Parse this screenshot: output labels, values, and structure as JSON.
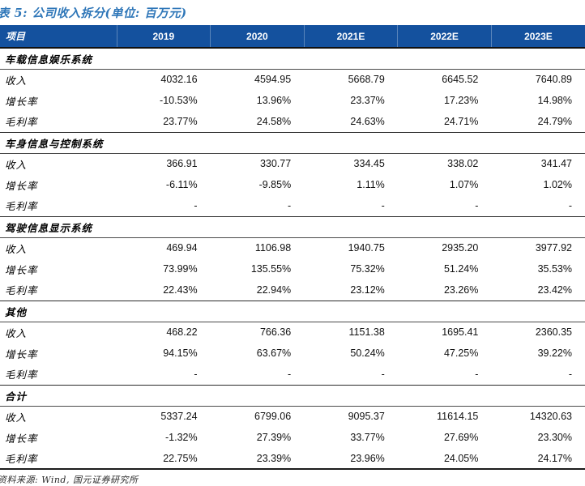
{
  "title": "表 5: 公司收入拆分(单位: 百万元)",
  "colors": {
    "header_bg": "#14519E",
    "title_blue": "#2E76B8",
    "rule_dark": "#1b1b1b"
  },
  "table": {
    "columns": [
      "项目",
      "2019",
      "2020",
      "2021E",
      "2022E",
      "2023E"
    ],
    "sections": [
      {
        "name": "车载信息娱乐系统",
        "rows": [
          {
            "label": "收入",
            "values": [
              "4032.16",
              "4594.95",
              "5668.79",
              "6645.52",
              "7640.89"
            ]
          },
          {
            "label": "增长率",
            "values": [
              "-10.53%",
              "13.96%",
              "23.37%",
              "17.23%",
              "14.98%"
            ]
          },
          {
            "label": "毛利率",
            "values": [
              "23.77%",
              "24.58%",
              "24.63%",
              "24.71%",
              "24.79%"
            ]
          }
        ]
      },
      {
        "name": "车身信息与控制系统",
        "rows": [
          {
            "label": "收入",
            "values": [
              "366.91",
              "330.77",
              "334.45",
              "338.02",
              "341.47"
            ]
          },
          {
            "label": "增长率",
            "values": [
              "-6.11%",
              "-9.85%",
              "1.11%",
              "1.07%",
              "1.02%"
            ]
          },
          {
            "label": "毛利率",
            "values": [
              "-",
              "-",
              "-",
              "-",
              "-"
            ]
          }
        ]
      },
      {
        "name": "驾驶信息显示系统",
        "rows": [
          {
            "label": "收入",
            "values": [
              "469.94",
              "1106.98",
              "1940.75",
              "2935.20",
              "3977.92"
            ]
          },
          {
            "label": "增长率",
            "values": [
              "73.99%",
              "135.55%",
              "75.32%",
              "51.24%",
              "35.53%"
            ]
          },
          {
            "label": "毛利率",
            "values": [
              "22.43%",
              "22.94%",
              "23.12%",
              "23.26%",
              "23.42%"
            ]
          }
        ]
      },
      {
        "name": "其他",
        "rows": [
          {
            "label": "收入",
            "values": [
              "468.22",
              "766.36",
              "1151.38",
              "1695.41",
              "2360.35"
            ]
          },
          {
            "label": "增长率",
            "values": [
              "94.15%",
              "63.67%",
              "50.24%",
              "47.25%",
              "39.22%"
            ]
          },
          {
            "label": "毛利率",
            "values": [
              "-",
              "-",
              "-",
              "-",
              "-"
            ]
          }
        ]
      },
      {
        "name": "合计",
        "rows": [
          {
            "label": "收入",
            "values": [
              "5337.24",
              "6799.06",
              "9095.37",
              "11614.15",
              "14320.63"
            ]
          },
          {
            "label": "增长率",
            "values": [
              "-1.32%",
              "27.39%",
              "33.77%",
              "27.69%",
              "23.30%"
            ]
          },
          {
            "label": "毛利率",
            "values": [
              "22.75%",
              "23.39%",
              "23.96%",
              "24.05%",
              "24.17%"
            ]
          }
        ]
      }
    ]
  },
  "footer": "资料来源: Wind, 国元证券研究所"
}
